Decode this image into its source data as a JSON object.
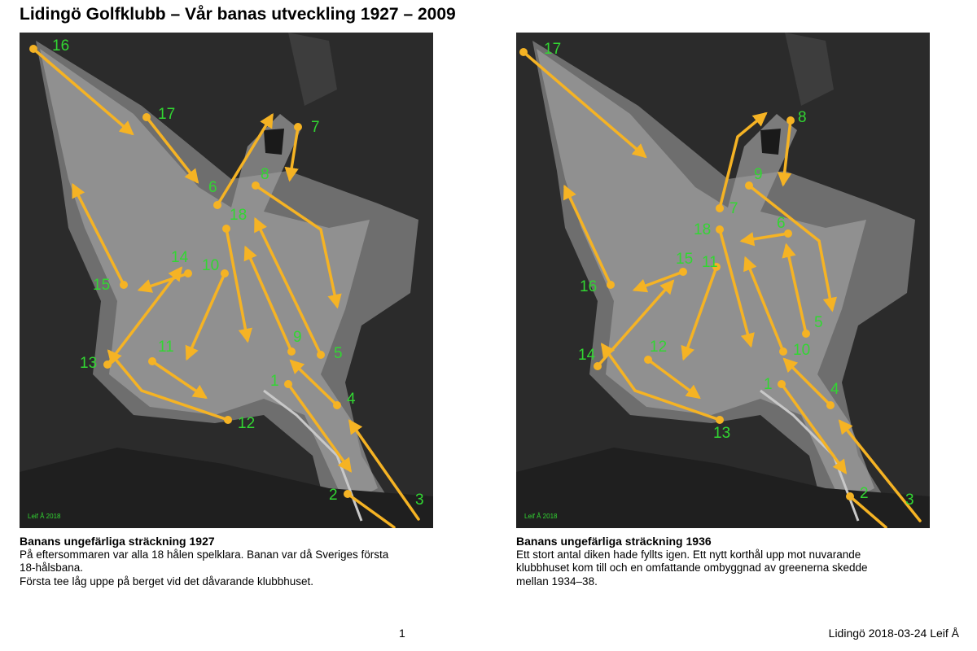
{
  "title": "Lidingö Golfklubb – Vår banas utveckling 1927 – 2009",
  "maps": [
    {
      "credit": "Leif Å 2018",
      "caption_title": "Banans ungefärliga sträckning 1927",
      "caption_lines": [
        "På eftersommaren var alla 18 hålen spelklara. Banan var då Sveriges första",
        "18-hålsbana.",
        "Första tee låg uppe på berget vid det dåvarande klubbhuset."
      ],
      "holes": [
        "1",
        "2",
        "3",
        "4",
        "5",
        "6",
        "7",
        "8",
        "9",
        "10",
        "11",
        "12",
        "13",
        "14",
        "15",
        "16",
        "17",
        "18"
      ]
    },
    {
      "credit": "Leif Å 2018",
      "caption_title": "Banans ungefärliga sträckning 1936",
      "caption_lines": [
        "Ett stort antal diken hade fyllts igen. Ett nytt korthål upp mot nuvarande",
        "klubbhuset kom till och en omfattande ombyggnad av greenerna skedde",
        "mellan 1934–38."
      ],
      "holes": [
        "1",
        "2",
        "3",
        "4",
        "5",
        "6",
        "7",
        "8",
        "9",
        "10",
        "11",
        "12",
        "13",
        "14",
        "15",
        "16",
        "17",
        "18"
      ]
    }
  ],
  "colors": {
    "route": "#f5b324",
    "label": "#32d632",
    "photo_dark": "#2b2b2b",
    "fairway": "#a9a9a9"
  },
  "footer": {
    "page": "1",
    "signature": "Lidingö 2018-03-24 Leif Å"
  }
}
